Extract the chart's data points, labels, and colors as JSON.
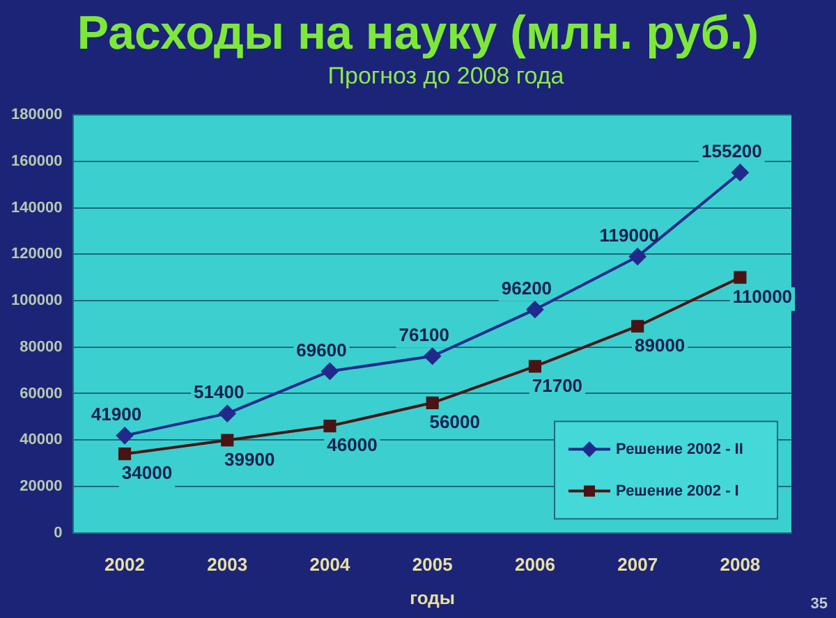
{
  "chart_data": {
    "type": "line",
    "title": "Расходы на науку (млн. руб.)",
    "subtitle": "Прогноз до 2008 года",
    "xlabel": "годы",
    "categories": [
      "2002",
      "2003",
      "2004",
      "2005",
      "2006",
      "2007",
      "2008"
    ],
    "series": [
      {
        "name": "Решение 2002 - II",
        "color": "#1f2a8c",
        "marker": "diamond",
        "values": [
          41900,
          51400,
          69600,
          76100,
          96200,
          119000,
          155200
        ]
      },
      {
        "name": "Решение 2002 - I",
        "color": "#4a1414",
        "marker": "square",
        "values": [
          34000,
          39900,
          46000,
          56000,
          71700,
          89000,
          110000
        ]
      }
    ],
    "ylim": [
      0,
      180000
    ],
    "yticks": [
      0,
      20000,
      40000,
      60000,
      80000,
      100000,
      120000,
      140000,
      160000,
      180000
    ],
    "grid": "y",
    "legend": "bottom right",
    "data_labels": true,
    "line_style": "solid",
    "annotations": [
      "35"
    ]
  }
}
